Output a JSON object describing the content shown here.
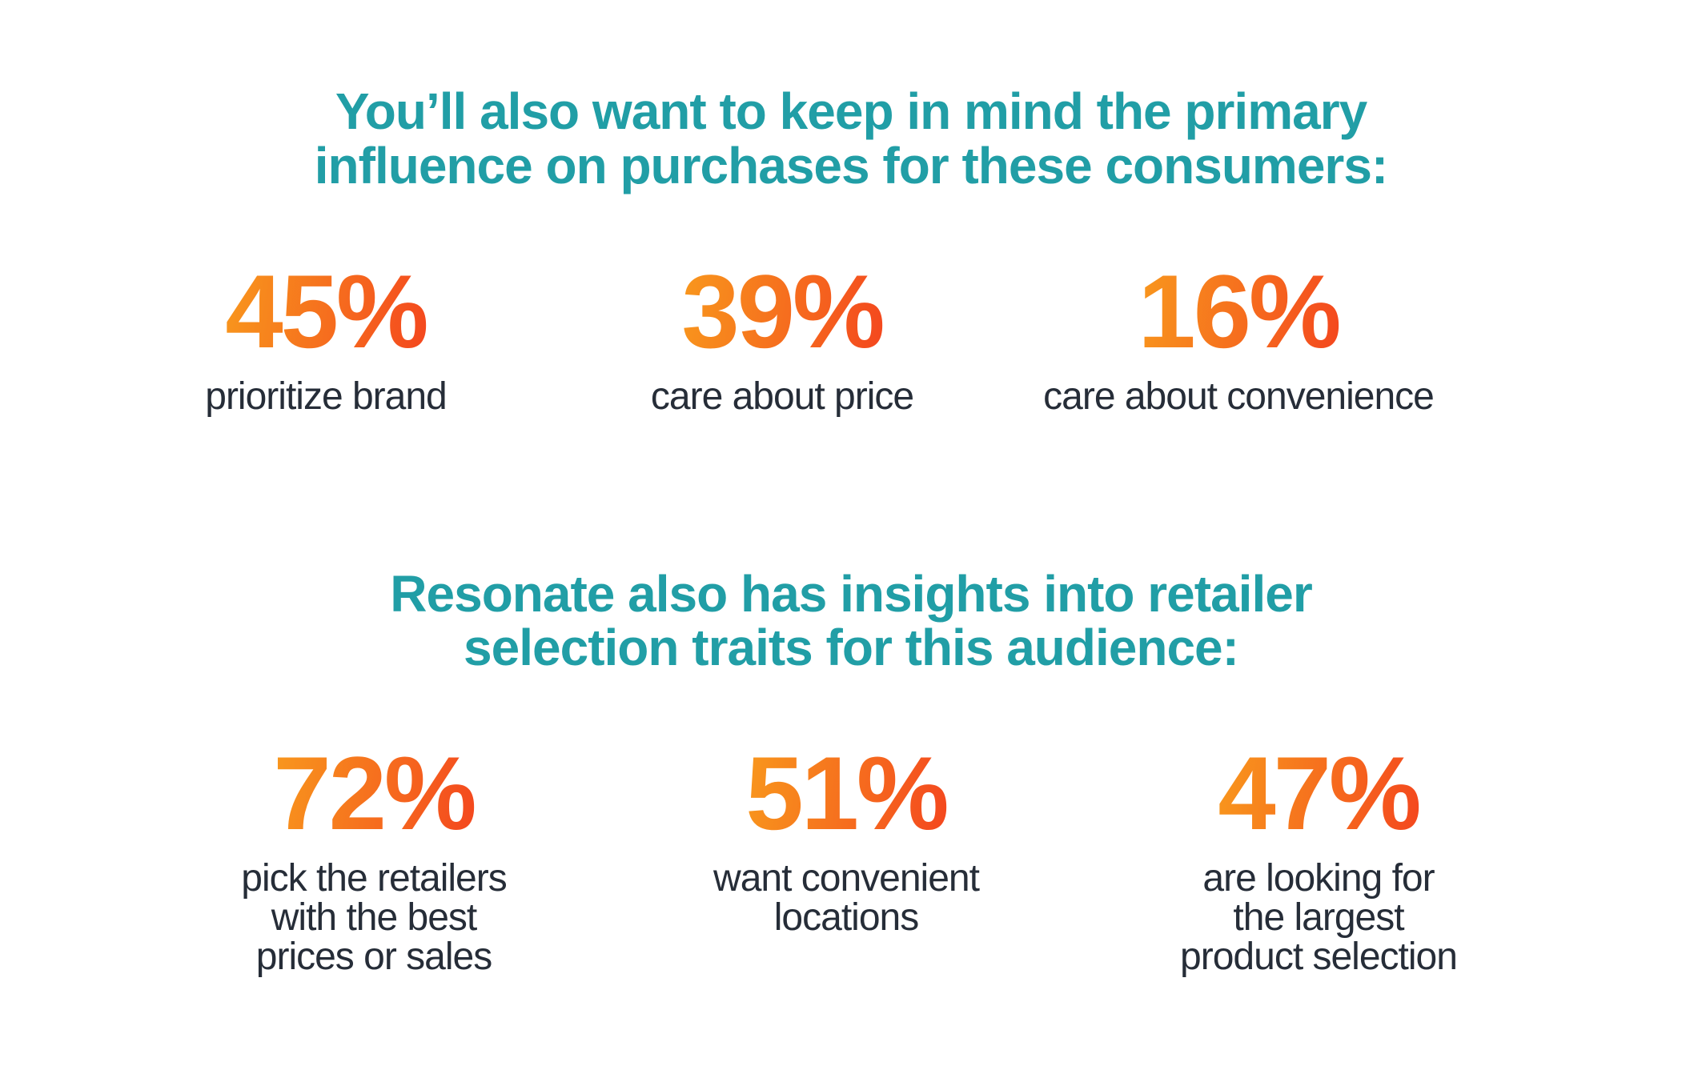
{
  "colors": {
    "background": "#FFFFFF",
    "heading_teal": "#219EA6",
    "stat_orange_gradient_start": "#F8971D",
    "stat_orange_gradient_end": "#F4481E",
    "label_dark": "#262D38"
  },
  "sections": [
    {
      "heading": "You’ll also want to keep in mind the primary\ninfluence on purchases for these consumers:",
      "stats": [
        {
          "value": "45%",
          "label": "prioritize brand"
        },
        {
          "value": "39%",
          "label": "care about price"
        },
        {
          "value": "16%",
          "label": "care about convenience"
        }
      ]
    },
    {
      "heading": "Resonate also has insights into retailer\nselection traits for this audience:",
      "stats": [
        {
          "value": "72%",
          "label": "pick the retailers\nwith the best\nprices or sales"
        },
        {
          "value": "51%",
          "label": "want convenient\nlocations"
        },
        {
          "value": "47%",
          "label": "are looking for\nthe largest\nproduct selection"
        }
      ]
    }
  ],
  "chart_data": [
    {
      "type": "table",
      "title": "You’ll also want to keep in mind the primary influence on purchases for these consumers:",
      "categories": [
        "prioritize brand",
        "care about price",
        "care about convenience"
      ],
      "values": [
        45,
        39,
        16
      ],
      "unit": "%"
    },
    {
      "type": "table",
      "title": "Resonate also has insights into retailer selection traits for this audience:",
      "categories": [
        "pick the retailers with the best prices or sales",
        "want convenient locations",
        "are looking for the largest product selection"
      ],
      "values": [
        72,
        51,
        47
      ],
      "unit": "%"
    }
  ]
}
